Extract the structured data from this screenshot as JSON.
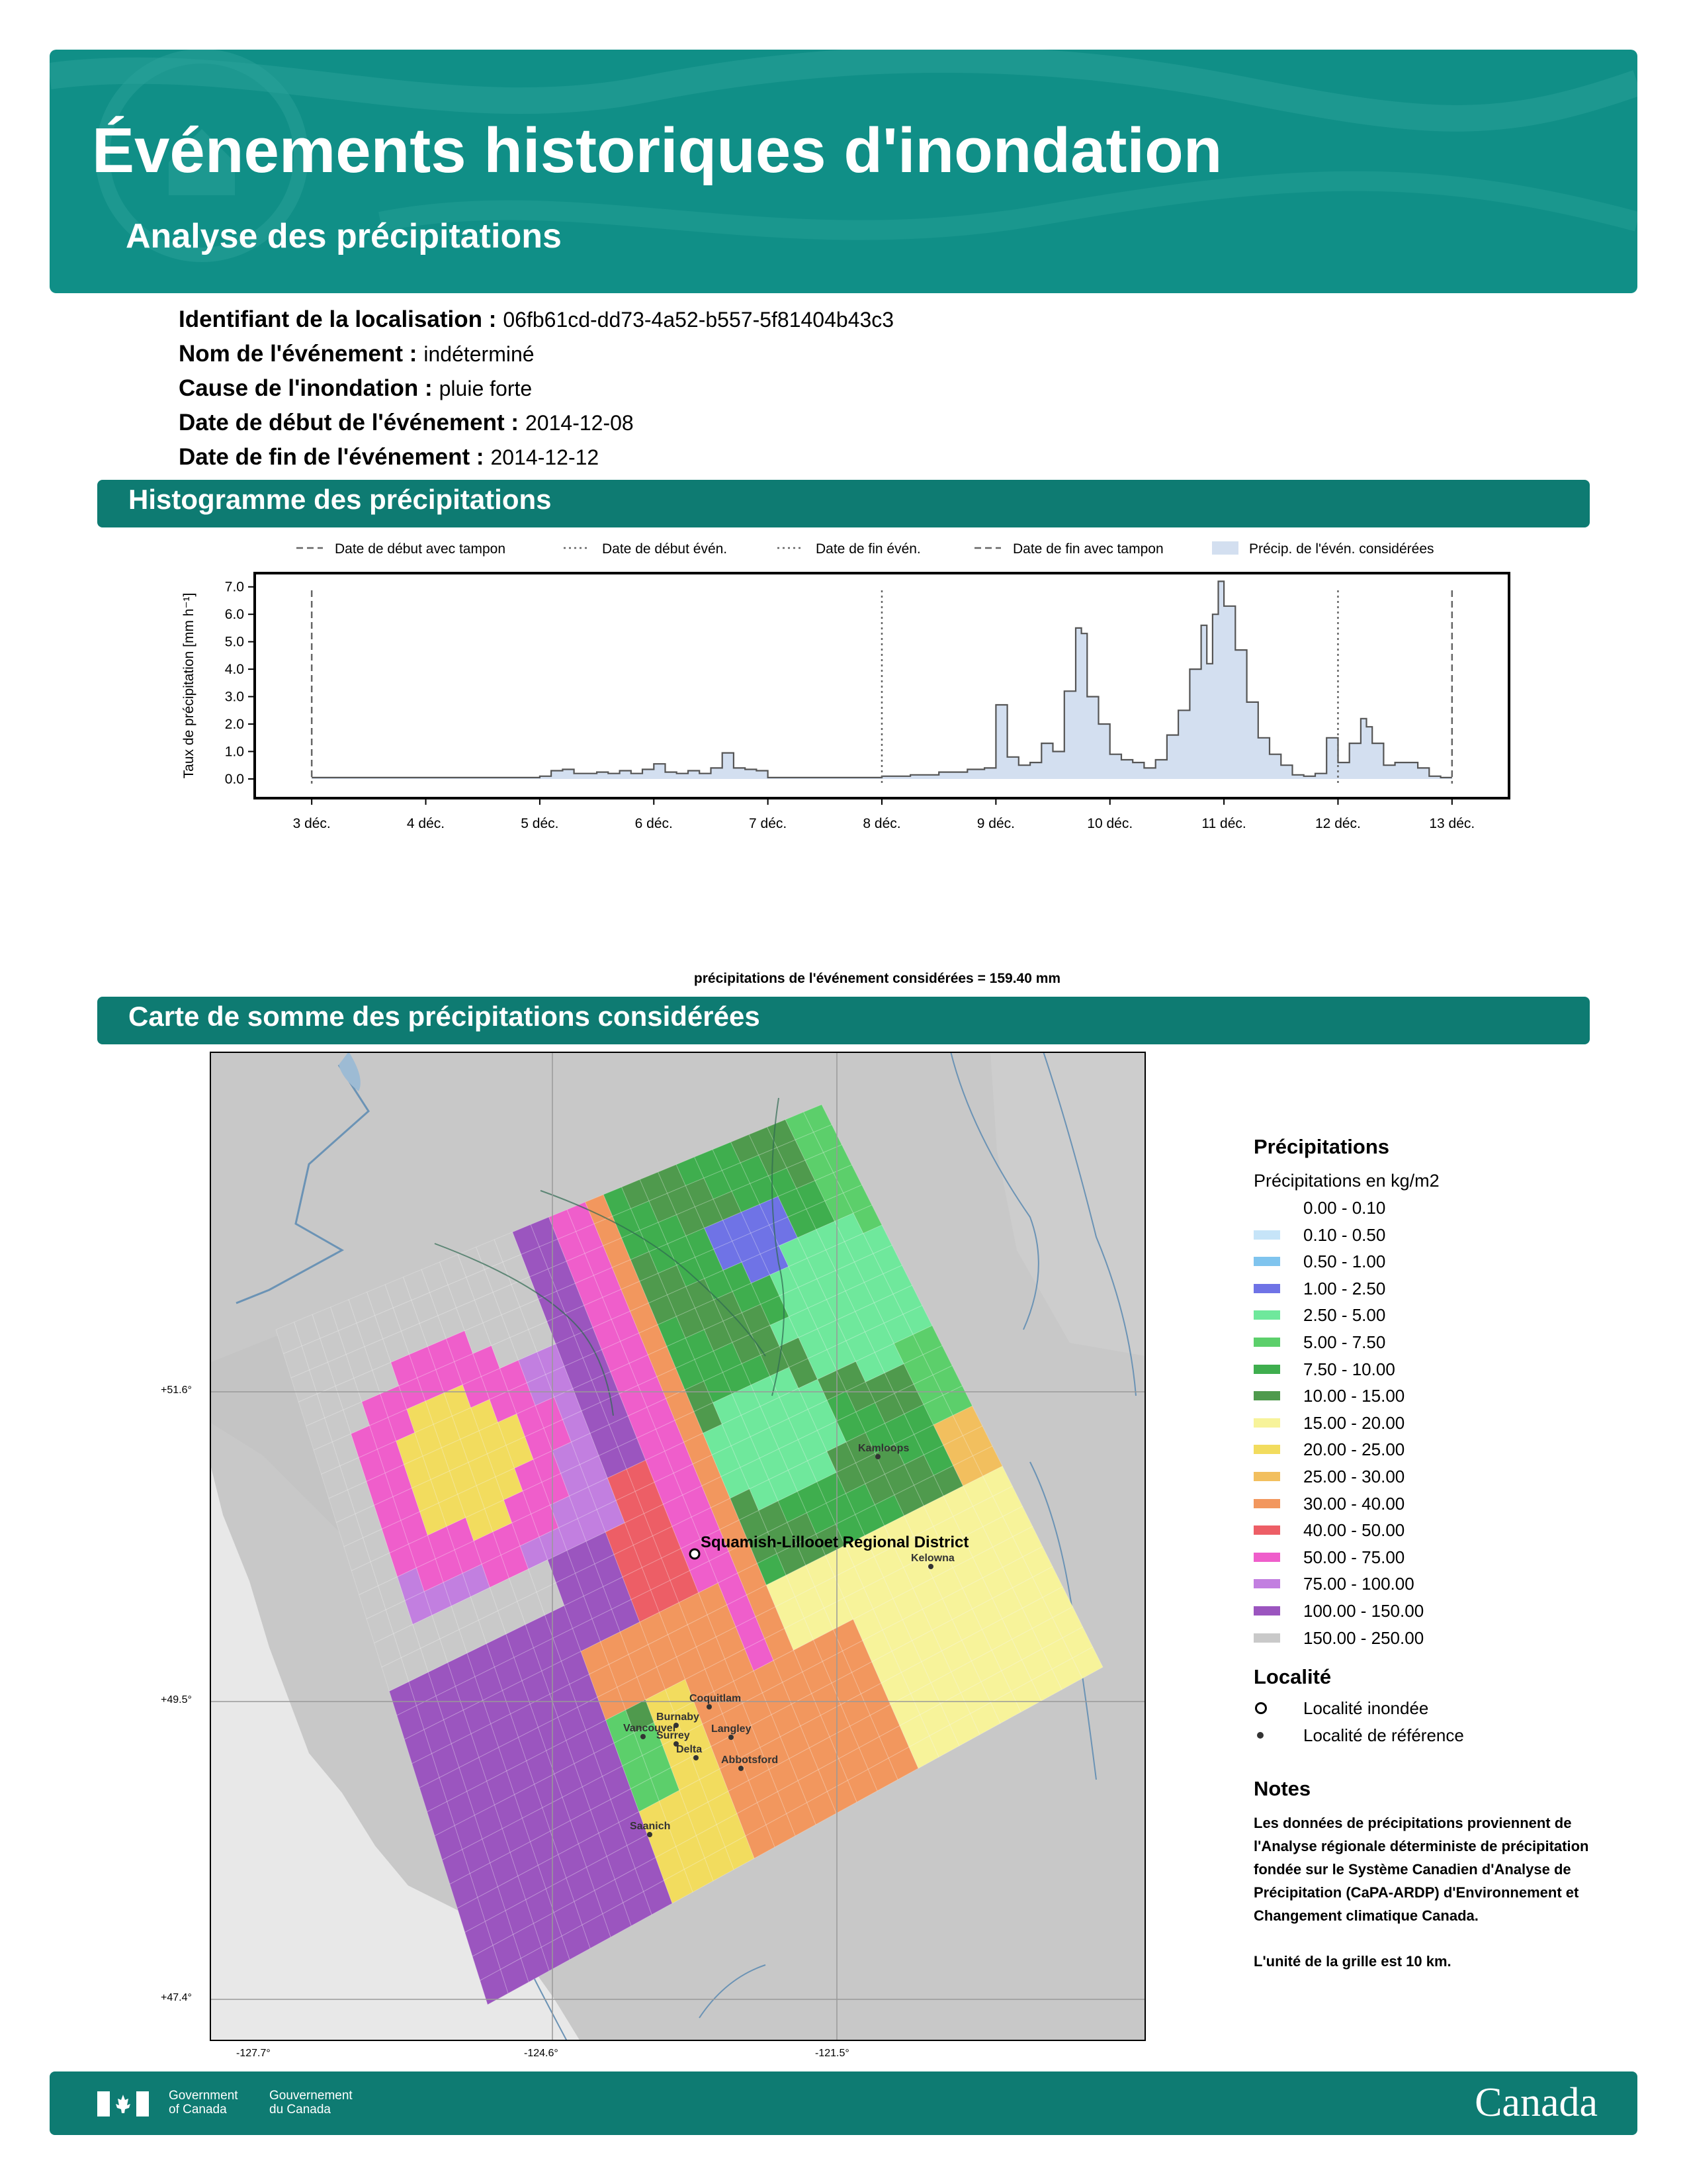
{
  "header": {
    "title": "Événements historiques d'inondation",
    "subtitle": "Analyse des précipitations"
  },
  "meta": [
    {
      "key": "Identifiant de la localisation :",
      "value": "06fb61cd-dd73-4a52-b557-5f81404b43c3"
    },
    {
      "key": "Nom de l'événement :",
      "value": "indéterminé"
    },
    {
      "key": "Cause de l'inondation :",
      "value": "pluie forte"
    },
    {
      "key": "Date de début de l'événement :",
      "value": "2014-12-08"
    },
    {
      "key": "Date de fin de l'événement :",
      "value": "2014-12-12"
    }
  ],
  "sections": {
    "histogram": "Histogramme des précipitations",
    "map": "Carte de somme des précipitations considérées"
  },
  "chart_data": {
    "type": "area",
    "title": "",
    "xlabel": "précipitations de l'événement considérées = 159.40 mm",
    "ylabel": "Taux de précipitation [mm h⁻¹]",
    "ylim": [
      -0.7,
      7.5
    ],
    "xlim": [
      2.5,
      13.5
    ],
    "yticks": [
      "0.0",
      "1.0",
      "2.0",
      "3.0",
      "4.0",
      "5.0",
      "6.0",
      "7.0"
    ],
    "ytick_values": [
      0,
      1,
      2,
      3,
      4,
      5,
      6,
      7
    ],
    "xticks": [
      "3 déc.",
      "4 déc.",
      "5 déc.",
      "6 déc.",
      "7 déc.",
      "8 déc.",
      "9 déc.",
      "10 déc.",
      "11 déc.",
      "12 déc.",
      "13 déc."
    ],
    "xtick_values": [
      3,
      4,
      5,
      6,
      7,
      8,
      9,
      10,
      11,
      12,
      13
    ],
    "vlines": [
      {
        "label": "Date de début avec tampon",
        "x": 3,
        "style": "dashed"
      },
      {
        "label": "Date de début évén.",
        "x": 8,
        "style": "dotted"
      },
      {
        "label": "Date de fin évén.",
        "x": 12,
        "style": "dotted"
      },
      {
        "label": "Date de fin avec tampon",
        "x": 13,
        "style": "dashed"
      }
    ],
    "fill_label": "Précip. de l'évén. considérées",
    "legend_position": "top",
    "fill_color": "#d3dff0",
    "line_color": "#555555",
    "series": [
      {
        "x": [
          3.0,
          3.25,
          3.5,
          3.75,
          4.0,
          4.25,
          4.5,
          4.75,
          5.0,
          5.1,
          5.2,
          5.3,
          5.4,
          5.5,
          5.6,
          5.7,
          5.8,
          5.9,
          6.0,
          6.1,
          6.2,
          6.3,
          6.4,
          6.5,
          6.6,
          6.7,
          6.8,
          6.9,
          7.0,
          7.25,
          7.5,
          7.75,
          8.0,
          8.25,
          8.5,
          8.75,
          8.9,
          9.0,
          9.1,
          9.2,
          9.3,
          9.4,
          9.5,
          9.6,
          9.7,
          9.75,
          9.8,
          9.9,
          10.0,
          10.1,
          10.2,
          10.3,
          10.4,
          10.5,
          10.6,
          10.7,
          10.8,
          10.85,
          10.9,
          10.95,
          11.0,
          11.1,
          11.2,
          11.3,
          11.4,
          11.5,
          11.6,
          11.7,
          11.8,
          11.9,
          12.0,
          12.1,
          12.2,
          12.25,
          12.3,
          12.4,
          12.5,
          12.6,
          12.7,
          12.8,
          12.9,
          13.0
        ],
        "y": [
          0.05,
          0.05,
          0.05,
          0.05,
          0.05,
          0.05,
          0.05,
          0.05,
          0.1,
          0.3,
          0.35,
          0.2,
          0.2,
          0.25,
          0.2,
          0.3,
          0.2,
          0.35,
          0.55,
          0.25,
          0.2,
          0.3,
          0.2,
          0.4,
          0.95,
          0.4,
          0.35,
          0.3,
          0.05,
          0.05,
          0.05,
          0.05,
          0.1,
          0.15,
          0.25,
          0.35,
          0.4,
          2.7,
          0.8,
          0.5,
          0.6,
          1.3,
          1.0,
          3.2,
          5.5,
          5.3,
          3.0,
          2.0,
          0.9,
          0.7,
          0.6,
          0.4,
          0.7,
          1.6,
          2.5,
          4.0,
          5.6,
          4.2,
          6.0,
          7.2,
          6.3,
          4.7,
          2.8,
          1.5,
          0.9,
          0.5,
          0.15,
          0.1,
          0.2,
          1.5,
          0.6,
          1.3,
          2.2,
          1.9,
          1.3,
          0.5,
          0.6,
          0.6,
          0.4,
          0.1,
          0.05,
          0.05
        ]
      }
    ]
  },
  "map": {
    "lat_ticks": [
      "+51.6°",
      "+49.5°",
      "+47.4°"
    ],
    "lon_ticks": [
      "-127.7°",
      "-124.6°",
      "-121.5°"
    ],
    "flooded_locality": "Squamish-Lillooet Regional District",
    "reference_localities": [
      "Kamloops",
      "Kelowna",
      "Coquitlam",
      "Burnaby",
      "Vancouver",
      "Langley",
      "Surrey",
      "Delta",
      "Abbotsford",
      "Saanich"
    ]
  },
  "legend": {
    "title": "Précipitations",
    "unit": "Précipitations en kg/m2",
    "classes": [
      {
        "label": "0.00 - 0.10",
        "color": "#ffffff"
      },
      {
        "label": "0.10 - 0.50",
        "color": "#c6e4f8"
      },
      {
        "label": "0.50 - 1.00",
        "color": "#7fc4ee"
      },
      {
        "label": "1.00 - 2.50",
        "color": "#6f73e6"
      },
      {
        "label": "2.50 - 5.00",
        "color": "#6fe89c"
      },
      {
        "label": "5.00 - 7.50",
        "color": "#5ccf6b"
      },
      {
        "label": "7.50 - 10.00",
        "color": "#3fae4e"
      },
      {
        "label": "10.00 - 15.00",
        "color": "#4f9a4d"
      },
      {
        "label": "15.00 - 20.00",
        "color": "#f7f39a"
      },
      {
        "label": "20.00 - 25.00",
        "color": "#f2dc5e"
      },
      {
        "label": "25.00 - 30.00",
        "color": "#f2bf5e"
      },
      {
        "label": "30.00 - 40.00",
        "color": "#f2975e"
      },
      {
        "label": "40.00 - 50.00",
        "color": "#ed5e66"
      },
      {
        "label": "50.00 - 75.00",
        "color": "#ef5ecb"
      },
      {
        "label": "75.00 - 100.00",
        "color": "#c27fe0"
      },
      {
        "label": "100.00 - 150.00",
        "color": "#9b55bf"
      },
      {
        "label": "150.00 - 250.00",
        "color": "#c9c9c9"
      }
    ],
    "locality_title": "Localité",
    "flooded_label": "Localité inondée",
    "reference_label": "Localité de référence",
    "notes_title": "Notes",
    "notes_text": "Les données de précipitations proviennent de l'Analyse régionale déterministe de précipitation fondée sur le Système Canadien d'Analyse de Précipitation (CaPA-ARDP) d'Environnement et Changement climatique Canada.",
    "grid_note": "L'unité de la grille est 10 km."
  },
  "footer": {
    "gov_en": [
      "Government",
      "of Canada"
    ],
    "gov_fr": [
      "Gouvernement",
      "du Canada"
    ],
    "wordmark": "Canada"
  }
}
